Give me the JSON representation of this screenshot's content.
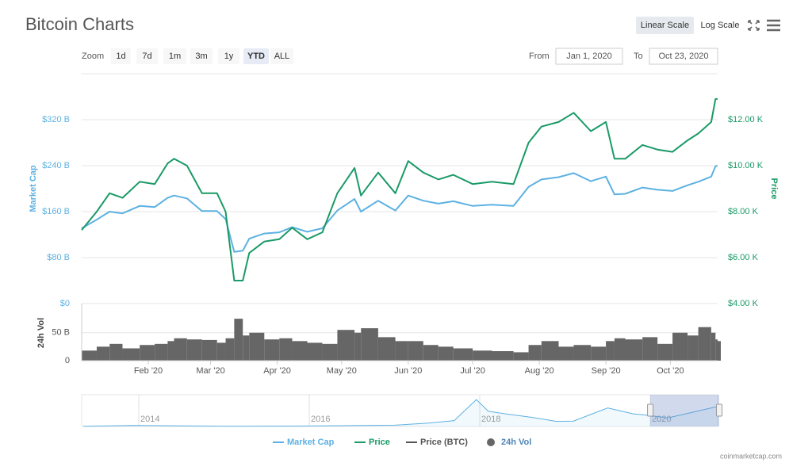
{
  "header": {
    "title": "Bitcoin Charts",
    "scale_buttons": [
      "Linear Scale",
      "Log Scale"
    ],
    "active_scale": 0,
    "zoom_label": "Zoom",
    "zoom_buttons": [
      "1d",
      "7d",
      "1m",
      "3m",
      "1y",
      "YTD",
      "ALL"
    ],
    "selected_zoom": 5,
    "from_label": "From",
    "from_value": "Jan 1, 2020",
    "to_label": "To",
    "to_value": "Oct 23, 2020"
  },
  "chart_data": {
    "type": "line",
    "x": [
      "2020-01-01",
      "2020-01-08",
      "2020-01-14",
      "2020-01-20",
      "2020-01-28",
      "2020-02-04",
      "2020-02-10",
      "2020-02-13",
      "2020-02-19",
      "2020-02-26",
      "2020-03-04",
      "2020-03-08",
      "2020-03-12",
      "2020-03-16",
      "2020-03-19",
      "2020-03-26",
      "2020-04-02",
      "2020-04-08",
      "2020-04-15",
      "2020-04-22",
      "2020-04-29",
      "2020-05-07",
      "2020-05-10",
      "2020-05-18",
      "2020-05-26",
      "2020-06-01",
      "2020-06-08",
      "2020-06-15",
      "2020-06-22",
      "2020-07-01",
      "2020-07-10",
      "2020-07-20",
      "2020-07-27",
      "2020-08-02",
      "2020-08-10",
      "2020-08-17",
      "2020-08-25",
      "2020-09-01",
      "2020-09-05",
      "2020-09-10",
      "2020-09-18",
      "2020-09-25",
      "2020-10-02",
      "2020-10-09",
      "2020-10-14",
      "2020-10-20",
      "2020-10-22",
      "2020-10-23"
    ],
    "xlim": [
      "2020-01-01",
      "2020-10-23"
    ],
    "xticks": [
      {
        "value": "2020-02-01",
        "label": "Feb '20"
      },
      {
        "value": "2020-03-01",
        "label": "Mar '20"
      },
      {
        "value": "2020-04-01",
        "label": "Apr '20"
      },
      {
        "value": "2020-05-01",
        "label": "May '20"
      },
      {
        "value": "2020-06-01",
        "label": "Jun '20"
      },
      {
        "value": "2020-07-01",
        "label": "Jul '20"
      },
      {
        "value": "2020-08-01",
        "label": "Aug '20"
      },
      {
        "value": "2020-09-01",
        "label": "Sep '20"
      },
      {
        "value": "2020-10-01",
        "label": "Oct '20"
      }
    ],
    "ylabel": "Market Cap",
    "y2label": "Price",
    "log": false,
    "grid": true,
    "ylim": [
      0,
      400
    ],
    "yticks": [
      {
        "value": 0,
        "label": "$0"
      },
      {
        "value": 80,
        "label": "$80 B"
      },
      {
        "value": 160,
        "label": "$160 B"
      },
      {
        "value": 240,
        "label": "$240 B"
      },
      {
        "value": 320,
        "label": "$320 B"
      }
    ],
    "y2lim": [
      4,
      14
    ],
    "y2ticks": [
      {
        "value": 4,
        "label": "$4.00 K"
      },
      {
        "value": 6,
        "label": "$6.00 K"
      },
      {
        "value": 8,
        "label": "$8.00 K"
      },
      {
        "value": 10,
        "label": "$10.00 K"
      },
      {
        "value": 12,
        "label": "$12.00 K"
      }
    ],
    "series": [
      {
        "name": "Market Cap",
        "color": "#5db1e2",
        "axis": "y",
        "values": [
          131,
          146,
          160,
          157,
          170,
          168,
          184,
          188,
          183,
          161,
          161,
          147,
          90,
          92,
          113,
          122,
          124,
          133,
          125,
          131,
          162,
          182,
          160,
          179,
          162,
          188,
          179,
          174,
          178,
          170,
          172,
          170,
          203,
          216,
          220,
          227,
          213,
          221,
          190,
          191,
          202,
          198,
          196,
          206,
          212,
          221,
          239,
          240
        ]
      },
      {
        "name": "Price",
        "color": "#1a9a67",
        "axis": "y2",
        "values": [
          7.2,
          8.0,
          8.8,
          8.6,
          9.3,
          9.2,
          10.1,
          10.3,
          10.0,
          8.8,
          8.8,
          8.0,
          5.0,
          5.0,
          6.2,
          6.7,
          6.8,
          7.3,
          6.8,
          7.1,
          8.8,
          9.9,
          8.7,
          9.7,
          8.8,
          10.2,
          9.7,
          9.4,
          9.6,
          9.2,
          9.3,
          9.2,
          11.0,
          11.7,
          11.9,
          12.3,
          11.5,
          11.9,
          10.3,
          10.3,
          10.9,
          10.7,
          10.6,
          11.1,
          11.4,
          11.9,
          12.9,
          12.9
        ]
      },
      {
        "name": "Price (BTC)",
        "color": "#555555",
        "visible": false,
        "values": null
      }
    ],
    "volume": {
      "type": "bar",
      "name": "24h Vol",
      "ylabel": "24h Vol",
      "color": "#666666",
      "legend_color": "#4f86b8",
      "ylim": [
        0,
        95
      ],
      "yticks": [
        0,
        {
          "value": 50,
          "label": "50 B"
        }
      ],
      "values": [
        18,
        25,
        30,
        22,
        28,
        30,
        35,
        40,
        38,
        37,
        32,
        40,
        75,
        45,
        50,
        38,
        40,
        35,
        32,
        30,
        55,
        50,
        58,
        42,
        35,
        35,
        28,
        25,
        22,
        18,
        17,
        15,
        28,
        35,
        25,
        28,
        25,
        35,
        40,
        38,
        42,
        30,
        50,
        45,
        60,
        50,
        38,
        35
      ]
    },
    "navigator": {
      "type": "line",
      "color": "#5db1e2",
      "x": [
        2013.35,
        2013.9,
        2014.1,
        2014.6,
        2015.1,
        2015.9,
        2016.5,
        2017.0,
        2017.4,
        2017.7,
        2017.96,
        2018.1,
        2018.3,
        2018.6,
        2018.9,
        2019.1,
        2019.5,
        2019.8,
        2020.0,
        2020.2,
        2020.5,
        2020.8
      ],
      "values": [
        1.3,
        12,
        10,
        6,
        3,
        5,
        10,
        15,
        40,
        70,
        320,
        180,
        150,
        110,
        60,
        64,
        220,
        150,
        130,
        100,
        170,
        240
      ],
      "xlim": [
        2013.33,
        2020.79
      ],
      "ylim": [
        0,
        340
      ],
      "xticks": [
        2014,
        2016,
        2018,
        2020
      ]
    }
  },
  "footer": {
    "credit": "coinmarketcap.com"
  }
}
